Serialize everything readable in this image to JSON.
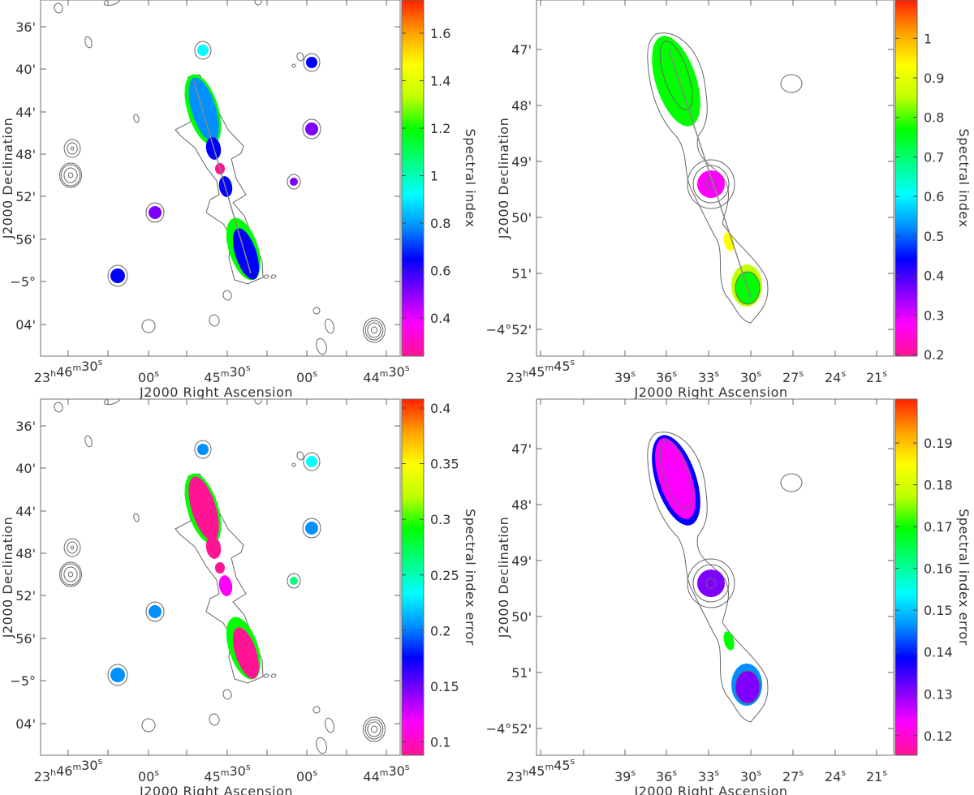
{
  "colormap": [
    "#ff1493",
    "#ff00ff",
    "#8000ff",
    "#0000ff",
    "#0090ff",
    "#00ffff",
    "#00ff80",
    "#00ff00",
    "#c0ff00",
    "#ffff00",
    "#ffa000",
    "#ff2000"
  ],
  "contour_color": "#666666",
  "chart_data": [
    {
      "type": "heatmap",
      "panel": "top-left",
      "xlabel": "J2000 Right Ascension",
      "ylabel": "J2000 Declination",
      "xticks": [
        [
          [
            "23",
            "h"
          ],
          [
            "46",
            "m"
          ],
          [
            "30",
            "s"
          ]
        ],
        [
          [
            "00",
            "s"
          ]
        ],
        [
          [
            "45",
            "m"
          ],
          [
            "30",
            "s"
          ]
        ],
        [
          [
            "00",
            "s"
          ]
        ],
        [
          [
            "44",
            "m"
          ],
          [
            "30",
            "s"
          ]
        ]
      ],
      "yticks": [
        "36'",
        "40'",
        "44'",
        "48'",
        "52'",
        "56'",
        "−5°",
        "04'"
      ],
      "colorbar": {
        "label": "Spectral index",
        "ticks": [
          0.4,
          0.6,
          0.8,
          1,
          1.2,
          1.4,
          1.6
        ],
        "range": [
          0.24,
          1.74
        ]
      },
      "overlay": "contours and jet axis line"
    },
    {
      "type": "heatmap",
      "panel": "top-right",
      "xlabel": "J2000 Right Ascension",
      "ylabel": "J2000 Declination",
      "xticks": [
        [
          [
            "23",
            "h"
          ],
          [
            "45",
            "m"
          ],
          [
            "45",
            "s"
          ]
        ],
        [
          [
            "39",
            "s"
          ]
        ],
        [
          [
            "36",
            "s"
          ]
        ],
        [
          [
            "33",
            "s"
          ]
        ],
        [
          [
            "30",
            "s"
          ]
        ],
        [
          [
            "27",
            "s"
          ]
        ],
        [
          [
            "24",
            "s"
          ]
        ],
        [
          [
            "21",
            "s"
          ]
        ]
      ],
      "yticks": [
        "47'",
        "48'",
        "49'",
        "50'",
        "51'",
        "−4°52'"
      ],
      "colorbar": {
        "label": "Spectral index",
        "ticks": [
          0.2,
          0.3,
          0.4,
          0.5,
          0.6,
          0.7,
          0.8,
          0.9,
          1
        ],
        "range": [
          0.196,
          1.097
        ]
      },
      "overlay": "contours and jet axis line"
    },
    {
      "type": "heatmap",
      "panel": "bottom-left",
      "xlabel": "J2000 Right Ascension",
      "ylabel": "J2000 Declination",
      "xticks": [
        [
          [
            "23",
            "h"
          ],
          [
            "46",
            "m"
          ],
          [
            "30",
            "s"
          ]
        ],
        [
          [
            "00",
            "s"
          ]
        ],
        [
          [
            "45",
            "m"
          ],
          [
            "30",
            "s"
          ]
        ],
        [
          [
            "00",
            "s"
          ]
        ],
        [
          [
            "44",
            "m"
          ],
          [
            "30",
            "s"
          ]
        ]
      ],
      "yticks": [
        "36'",
        "40'",
        "44'",
        "48'",
        "52'",
        "56'",
        "−5°",
        "04'"
      ],
      "colorbar": {
        "label": "Spectral index error",
        "ticks": [
          0.1,
          0.15,
          0.2,
          0.25,
          0.3,
          0.35,
          0.4
        ],
        "range": [
          0.088,
          0.408
        ]
      },
      "overlay": "contours"
    },
    {
      "type": "heatmap",
      "panel": "bottom-right",
      "xlabel": "J2000 Right Ascension",
      "ylabel": "J2000 Declination",
      "xticks": [
        [
          [
            "23",
            "h"
          ],
          [
            "45",
            "m"
          ],
          [
            "45",
            "s"
          ]
        ],
        [
          [
            "39",
            "s"
          ]
        ],
        [
          [
            "36",
            "s"
          ]
        ],
        [
          [
            "33",
            "s"
          ]
        ],
        [
          [
            "30",
            "s"
          ]
        ],
        [
          [
            "27",
            "s"
          ]
        ],
        [
          [
            "24",
            "s"
          ]
        ],
        [
          [
            "21",
            "s"
          ]
        ]
      ],
      "yticks": [
        "47'",
        "48'",
        "49'",
        "50'",
        "51'",
        "−4°52'"
      ],
      "colorbar": {
        "label": "Spectral index error",
        "ticks": [
          0.12,
          0.13,
          0.14,
          0.15,
          0.16,
          0.17,
          0.18,
          0.19
        ],
        "range": [
          0.1153,
          0.2005
        ]
      },
      "overlay": "contours"
    }
  ]
}
